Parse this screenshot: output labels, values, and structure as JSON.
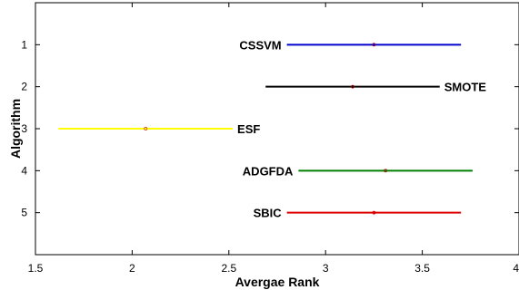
{
  "chart_data": {
    "type": "interval",
    "title": "",
    "xlabel": "Avergae Rank",
    "ylabel": "Algorithm",
    "xlim": [
      1.5,
      4
    ],
    "ylim": [
      0,
      6
    ],
    "y_reversed": true,
    "grid": false,
    "legend": "none",
    "x_ticks": [
      "1.5",
      "2",
      "2.5",
      "3",
      "3.5",
      "4"
    ],
    "y_ticks": [
      "1",
      "2",
      "3",
      "4",
      "5"
    ],
    "series": [
      {
        "name": "CSSVM",
        "y": 1,
        "mean": 3.25,
        "low": 2.8,
        "high": 3.7,
        "color": "#0000cc",
        "label_side": "left"
      },
      {
        "name": "SMOTE",
        "y": 2,
        "mean": 3.14,
        "low": 2.69,
        "high": 3.59,
        "color": "#000000",
        "label_side": "right"
      },
      {
        "name": "ESF",
        "y": 3,
        "mean": 2.07,
        "low": 1.62,
        "high": 2.52,
        "color": "#ffff00",
        "label_side": "right"
      },
      {
        "name": "ADGFDA",
        "y": 4,
        "mean": 3.31,
        "low": 2.86,
        "high": 3.76,
        "color": "#008000",
        "label_side": "left"
      },
      {
        "name": "SBIC",
        "y": 5,
        "mean": 3.25,
        "low": 2.8,
        "high": 3.7,
        "color": "#dd0000",
        "label_side": "left"
      }
    ]
  }
}
